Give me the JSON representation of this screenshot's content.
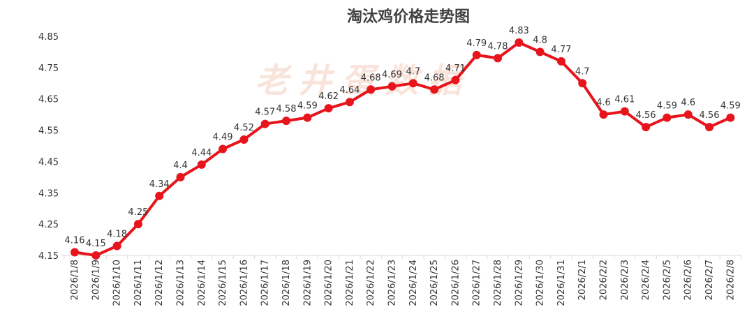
{
  "watermark": "老井蛋数据",
  "chart_data": {
    "type": "line",
    "title": "淘汰鸡价格走势图",
    "xlabel": "",
    "ylabel": "",
    "ylim": [
      4.15,
      4.85
    ],
    "yticks": [
      "4.15",
      "4.25",
      "4.35",
      "4.45",
      "4.55",
      "4.65",
      "4.75",
      "4.85"
    ],
    "grid": false,
    "legend": "none",
    "color": "#e8141c",
    "categories": [
      "2026/1/8",
      "2026/1/9",
      "2026/1/10",
      "2026/1/11",
      "2026/1/12",
      "2026/1/13",
      "2026/1/14",
      "2026/1/15",
      "2026/1/16",
      "2026/1/17",
      "2026/1/18",
      "2026/1/19",
      "2026/1/20",
      "2026/1/21",
      "2026/1/22",
      "2026/1/23",
      "2026/1/24",
      "2026/1/25",
      "2026/1/26",
      "2026/1/27",
      "2026/1/28",
      "2026/1/29",
      "2026/1/30",
      "2026/1/31",
      "2026/2/1",
      "2026/2/2",
      "2026/2/3",
      "2026/2/4",
      "2026/2/5",
      "2026/2/6",
      "2026/2/7",
      "2026/2/8"
    ],
    "values": [
      4.16,
      4.15,
      4.18,
      4.25,
      4.34,
      4.4,
      4.44,
      4.49,
      4.52,
      4.57,
      4.58,
      4.59,
      4.62,
      4.64,
      4.68,
      4.69,
      4.7,
      4.68,
      4.71,
      4.79,
      4.78,
      4.83,
      4.8,
      4.77,
      4.7,
      4.6,
      4.61,
      4.56,
      4.59,
      4.6,
      4.56,
      4.59
    ]
  }
}
